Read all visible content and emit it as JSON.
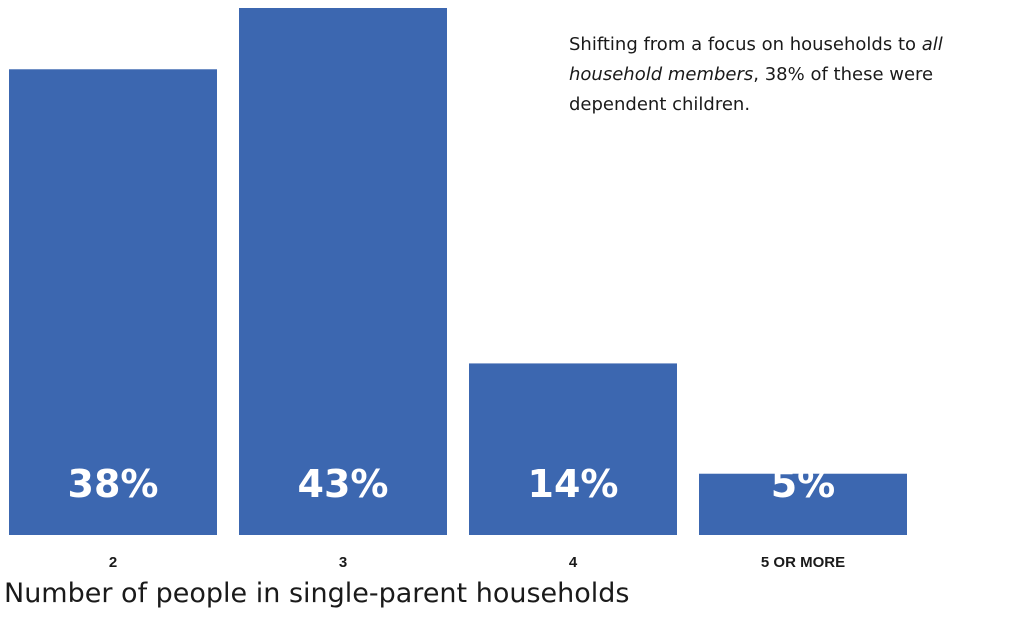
{
  "chart_data": {
    "type": "bar",
    "categories": [
      "2",
      "3",
      "4",
      "5 OR MORE"
    ],
    "values": [
      38,
      43,
      14,
      5
    ],
    "value_labels": [
      "38%",
      "43%",
      "14%",
      "5%"
    ],
    "xlabel": "Number of people in single-parent households",
    "ylabel": "",
    "ylim": [
      0,
      43
    ],
    "grid": false,
    "bar_color": "#3c67b0",
    "value_label_color": "#ffffff"
  },
  "annotation": {
    "part1": "Shifting from a focus on households to ",
    "emphasis": "all household members",
    "part2": ", 38% of these were dependent children."
  }
}
